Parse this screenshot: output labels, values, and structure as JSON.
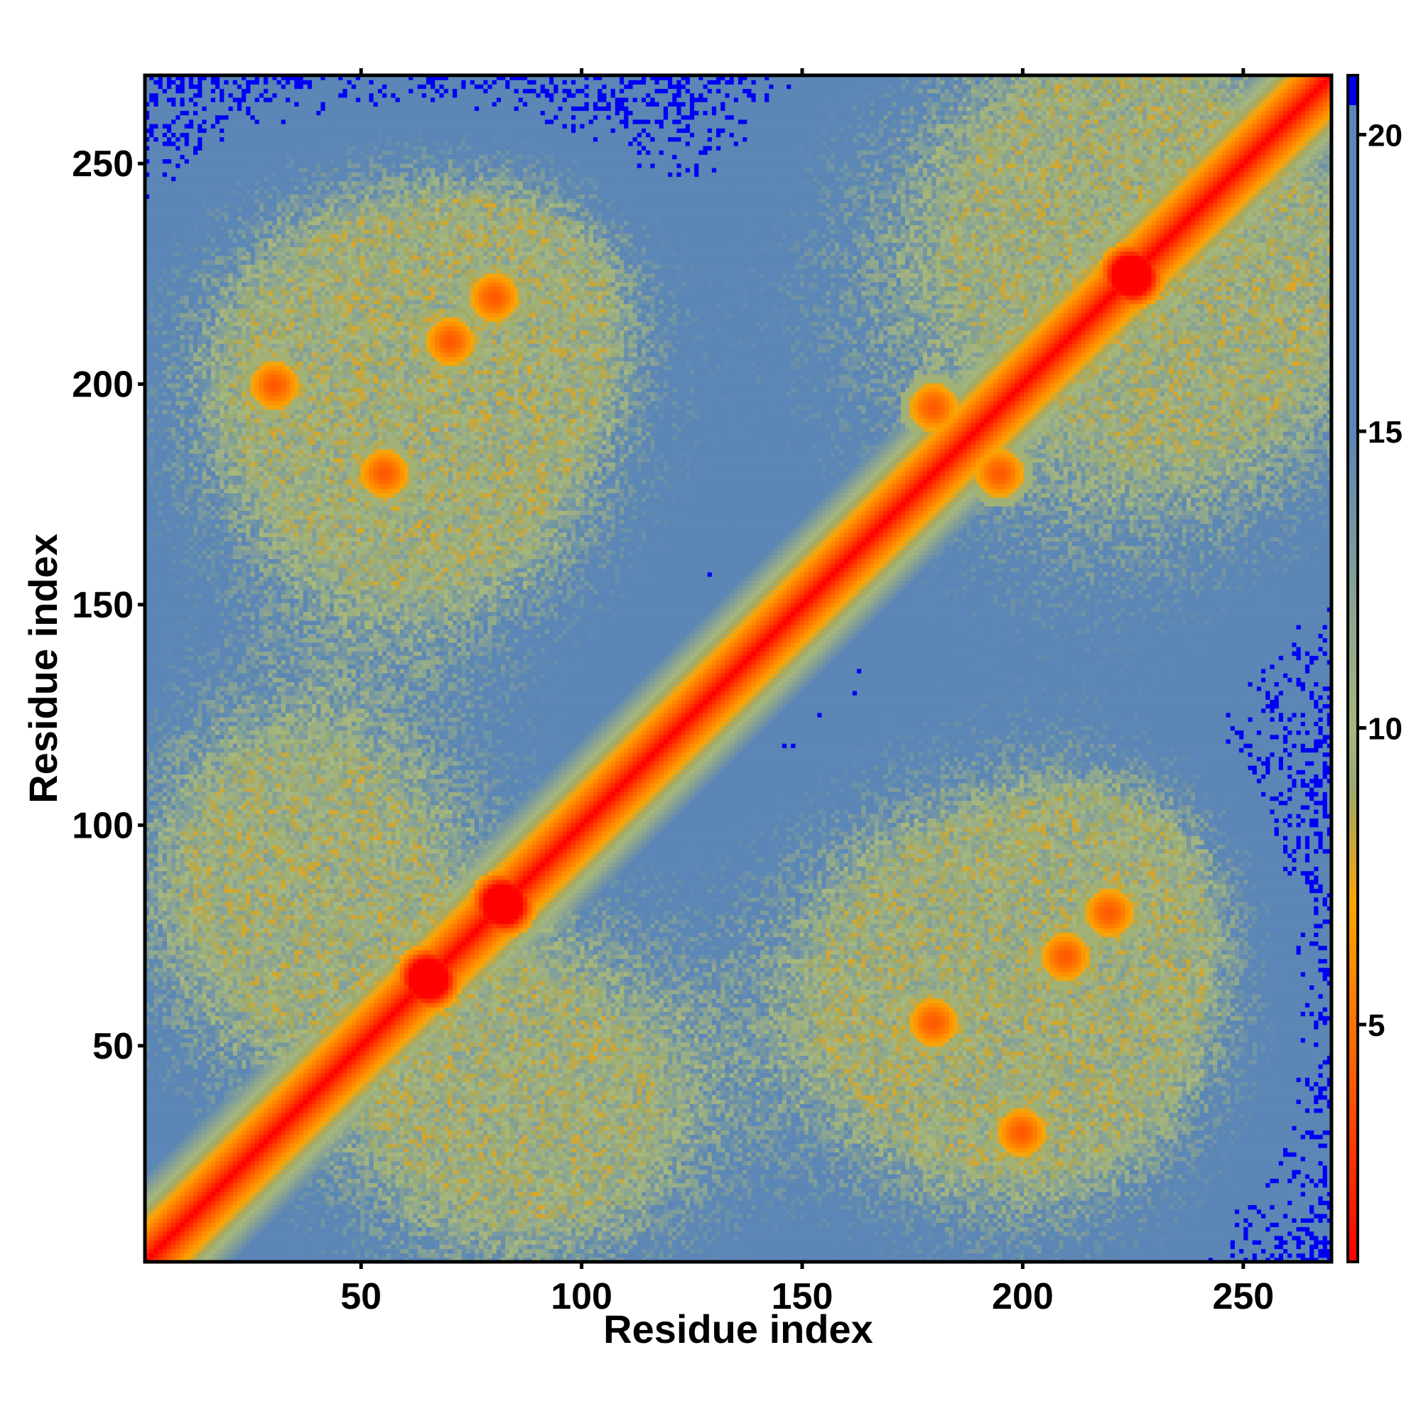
{
  "chart_data": {
    "type": "heatmap",
    "title": "",
    "xlabel": "Residue index",
    "ylabel": "Residue index",
    "xlim": [
      1,
      270
    ],
    "ylim": [
      1,
      270
    ],
    "n_residues": 270,
    "x_ticks": [
      50,
      100,
      150,
      200,
      250
    ],
    "y_ticks": [
      50,
      100,
      150,
      200,
      250
    ],
    "grid": false,
    "colorbar": {
      "range": [
        1,
        21
      ],
      "ticks": [
        5,
        10,
        15,
        20
      ],
      "stops": [
        {
          "value": 1,
          "color": "#ff0000"
        },
        {
          "value": 4,
          "color": "#ff5a00"
        },
        {
          "value": 7,
          "color": "#ffa500"
        },
        {
          "value": 9,
          "color": "#9aa96e"
        },
        {
          "value": 10,
          "color": "#a9b87b"
        },
        {
          "value": 15,
          "color": "#5b86b6"
        },
        {
          "value": 20,
          "color": "#5b86b6"
        },
        {
          "value": 21,
          "color": "#0000f5"
        }
      ]
    },
    "value_meaning": "pairwise residue distance; color blue = beyond cutoff",
    "domains": [
      [
        1,
        110
      ],
      [
        195,
        270
      ]
    ],
    "contact_features": [
      {
        "center": [
          65,
          65
        ],
        "kind": "helix-cross"
      },
      {
        "center": [
          82,
          82
        ],
        "kind": "helix-cross"
      },
      {
        "center": [
          210,
          70
        ],
        "kind": "interdomain"
      },
      {
        "center": [
          220,
          80
        ],
        "kind": "interdomain"
      },
      {
        "center": [
          180,
          55
        ],
        "kind": "interdomain"
      },
      {
        "center": [
          200,
          30
        ],
        "kind": "interdomain"
      },
      {
        "center": [
          180,
          195
        ],
        "kind": "helix-cross"
      },
      {
        "center": [
          225,
          225
        ],
        "kind": "helix-cross"
      }
    ]
  }
}
